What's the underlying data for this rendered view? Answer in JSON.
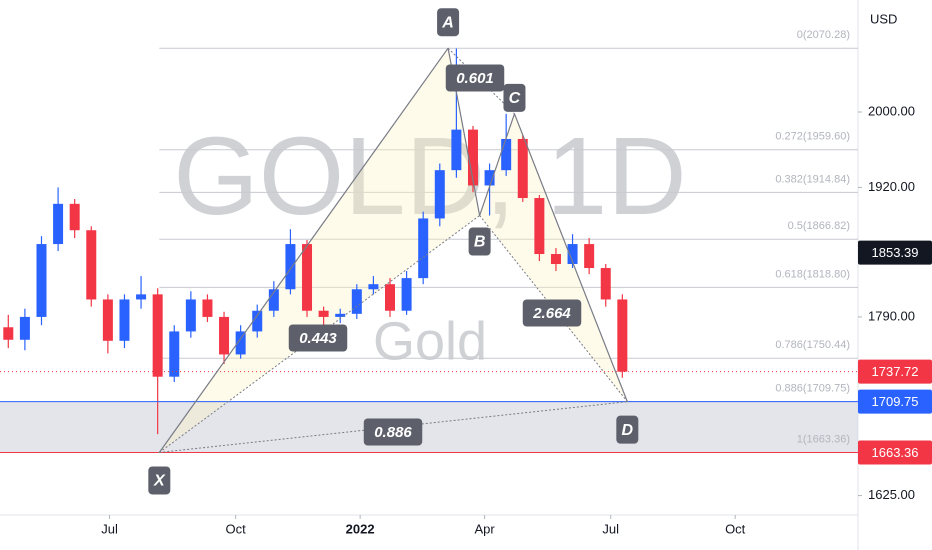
{
  "chart_data": {
    "type": "candlestick",
    "watermark": "GOLD, 1D",
    "watermark_sub": "Gold",
    "currency": "USD",
    "log_scale": true,
    "ylim": [
      1608,
      2125
    ],
    "yticks": [
      {
        "value": 2000,
        "label": "2000.00"
      },
      {
        "value": 1920,
        "label": "1920.00"
      },
      {
        "value": 1790,
        "label": "1790.00"
      },
      {
        "value": 1625,
        "label": "1625.00"
      }
    ],
    "xlim": [
      -0.5,
      51.2
    ],
    "xticks": [
      {
        "value": 6.1,
        "label": "Jul"
      },
      {
        "value": 13.7,
        "label": "Oct"
      },
      {
        "value": 21.2,
        "label": "2022"
      },
      {
        "value": 28.7,
        "label": "Apr"
      },
      {
        "value": 36.3,
        "label": "Jul"
      },
      {
        "value": 43.8,
        "label": "Oct"
      }
    ],
    "up_color": "#2962ff",
    "down_color": "#f23645",
    "open": [
      1780,
      1768,
      1790,
      1862,
      1903,
      1876,
      1807,
      1767,
      1807,
      1812,
      1733,
      1776,
      1807,
      1790,
      1754,
      1776,
      1796,
      1817,
      1862,
      1796,
      1790,
      1793,
      1817,
      1822,
      1796,
      1828,
      1888,
      1938,
      1981,
      1922,
      1938,
      1971,
      1909,
      1852,
      1842,
      1862,
      1838,
      1807
    ],
    "high": [
      1792,
      1798,
      1870,
      1920,
      1908,
      1880,
      1812,
      1812,
      1830,
      1818,
      1782,
      1815,
      1812,
      1795,
      1782,
      1802,
      1825,
      1877,
      1866,
      1800,
      1798,
      1822,
      1830,
      1828,
      1835,
      1895,
      1945,
      2070,
      1985,
      1945,
      1998,
      1975,
      1912,
      1858,
      1872,
      1868,
      1842,
      1812
    ],
    "low": [
      1760,
      1758,
      1782,
      1855,
      1868,
      1800,
      1755,
      1760,
      1798,
      1680,
      1728,
      1770,
      1785,
      1745,
      1750,
      1770,
      1790,
      1812,
      1790,
      1782,
      1784,
      1788,
      1812,
      1790,
      1792,
      1822,
      1880,
      1930,
      1915,
      1891,
      1932,
      1905,
      1845,
      1835,
      1838,
      1832,
      1800,
      1732
    ],
    "close": [
      1768,
      1790,
      1862,
      1903,
      1876,
      1807,
      1767,
      1807,
      1812,
      1733,
      1776,
      1807,
      1790,
      1754,
      1776,
      1796,
      1817,
      1862,
      1796,
      1790,
      1793,
      1817,
      1822,
      1796,
      1828,
      1888,
      1938,
      1981,
      1922,
      1938,
      1971,
      1909,
      1852,
      1842,
      1862,
      1838,
      1807,
      1737.72
    ],
    "pattern": [
      {
        "label": "X",
        "x": 9.1,
        "price": 1663.36
      },
      {
        "label": "A",
        "x": 26.5,
        "price": 2070.28
      },
      {
        "label": "B",
        "x": 28.4,
        "price": 1891
      },
      {
        "label": "C",
        "x": 30.5,
        "price": 1998
      },
      {
        "label": "D",
        "x": 37.3,
        "price": 1709.75
      }
    ],
    "ratios": [
      "0.601",
      "0.443",
      "2.664",
      "0.886"
    ],
    "fib_levels": [
      {
        "value": 2070.28,
        "label": "0(2070.28)"
      },
      {
        "value": 1959.6,
        "label": "0.272(1959.60)"
      },
      {
        "value": 1914.84,
        "label": "0.382(1914.84)"
      },
      {
        "value": 1866.82,
        "label": "0.5(1866.82)"
      },
      {
        "value": 1818.8,
        "label": "0.618(1818.80)"
      },
      {
        "value": 1750.44,
        "label": "0.786(1750.44)"
      },
      {
        "value": 1709.75,
        "label": "0.886(1709.75)"
      },
      {
        "value": 1663.36,
        "label": "1(1663.36)"
      }
    ],
    "price_badges": [
      {
        "value": 1853.39,
        "label": "1853.39",
        "color": "#131722"
      },
      {
        "value": 1737.72,
        "label": "1737.72",
        "color": "#f23645"
      },
      {
        "value": 1709.75,
        "label": "1709.75",
        "color": "#2962ff"
      },
      {
        "value": 1663.36,
        "label": "1663.36",
        "color": "#f23645"
      }
    ]
  }
}
